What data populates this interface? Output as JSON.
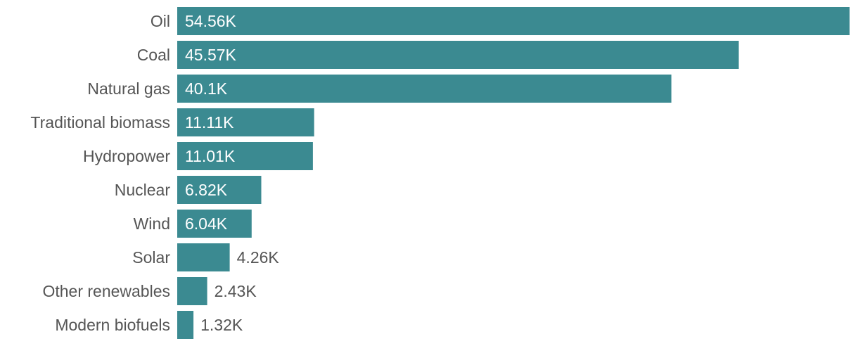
{
  "chart_data": {
    "type": "bar",
    "orientation": "horizontal",
    "categories": [
      "Oil",
      "Coal",
      "Natural gas",
      "Traditional biomass",
      "Hydropower",
      "Nuclear",
      "Wind",
      "Solar",
      "Other renewables",
      "Modern biofuels"
    ],
    "values": [
      54560,
      45570,
      40100,
      11110,
      11010,
      6820,
      6040,
      4260,
      2430,
      1320
    ],
    "value_labels": [
      "54.56K",
      "45.57K",
      "40.1K",
      "11.11K",
      "11.01K",
      "6.82K",
      "6.04K",
      "4.26K",
      "2.43K",
      "1.32K"
    ],
    "title": "",
    "xlabel": "",
    "ylabel": "",
    "xlim": [
      0,
      54560
    ],
    "grid": false,
    "legend": "none",
    "colors": {
      "bar": "#3b8a91",
      "label_inside": "#ffffff",
      "label_outside": "#555555",
      "category_text": "#555555"
    }
  }
}
